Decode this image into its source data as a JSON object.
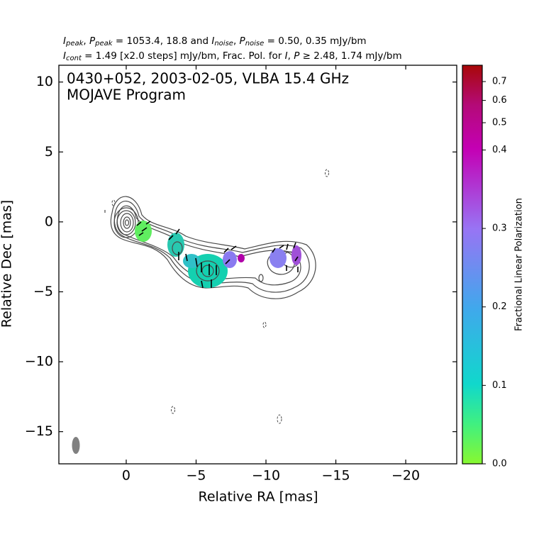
{
  "chart_data": {
    "type": "image",
    "header_line1": [
      "I",
      "peak",
      ", ",
      "P",
      "peak",
      " = 1053.4, 18.8 and ",
      "I",
      "noise",
      ", ",
      "P",
      "noise",
      " = 0.50, 0.35 mJy/bm"
    ],
    "header_line2": [
      "I",
      "cont",
      " = 1.49 [x2.0 steps] mJy/bm, Frac. Pol. for ",
      "I",
      ", ",
      "P",
      " ≥  2.48, 1.74 mJy/bm"
    ],
    "annotation": [
      "0430+052, 2003-02-05, VLBA 15.4 GHz",
      "MOJAVE Program"
    ],
    "x_label": "Relative RA [mas]",
    "y_label": "Relative Dec [mas]",
    "colorbar_label": "Fractional Linear Polarization",
    "xlim": [
      4.82,
      -23.65
    ],
    "ylim": [
      -17.3,
      11.2
    ],
    "xticks": [
      0,
      {
        "value": -5,
        "label": "−5"
      },
      {
        "value": -10,
        "label": "−10"
      },
      {
        "value": -15,
        "label": "−15"
      },
      {
        "value": -20,
        "label": "−20"
      }
    ],
    "yticks": [
      {
        "value": -15,
        "label": "−15"
      },
      {
        "value": -10,
        "label": "−10"
      },
      {
        "value": -5,
        "label": "−5"
      },
      0,
      5,
      10
    ],
    "clim": [
      0,
      0.8
    ],
    "cticks": [
      {
        "value": 0,
        "label": "0.0"
      },
      0.1,
      0.2,
      0.3,
      0.4,
      0.5,
      0.6,
      0.7
    ]
  }
}
